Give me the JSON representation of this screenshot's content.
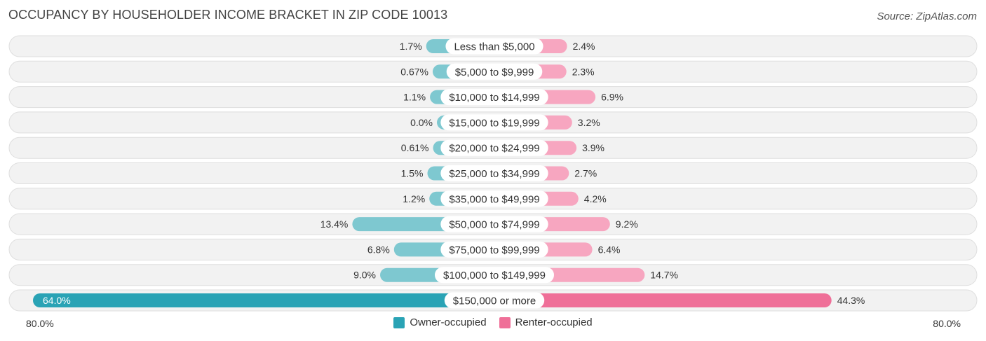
{
  "header": {
    "title": "OCCUPANCY BY HOUSEHOLDER INCOME BRACKET IN ZIP CODE 10013",
    "source": "Source: ZipAtlas.com"
  },
  "chart_data": {
    "type": "bar",
    "orientation": "horizontal-diverging",
    "title": "OCCUPANCY BY HOUSEHOLDER INCOME BRACKET IN ZIP CODE 10013",
    "categories": [
      "Less than $5,000",
      "$5,000 to $9,999",
      "$10,000 to $14,999",
      "$15,000 to $19,999",
      "$20,000 to $24,999",
      "$25,000 to $34,999",
      "$35,000 to $49,999",
      "$50,000 to $74,999",
      "$75,000 to $99,999",
      "$100,000 to $149,999",
      "$150,000 or more"
    ],
    "series": [
      {
        "name": "Owner-occupied",
        "color": "#7ec8d0",
        "highlight_color": "#2aa3b5",
        "values": [
          1.7,
          0.67,
          1.1,
          0.0,
          0.61,
          1.5,
          1.2,
          13.4,
          6.8,
          9.0,
          64.0
        ],
        "labels": [
          "1.7%",
          "0.67%",
          "1.1%",
          "0.0%",
          "0.61%",
          "1.5%",
          "1.2%",
          "13.4%",
          "6.8%",
          "9.0%",
          "64.0%"
        ]
      },
      {
        "name": "Renter-occupied",
        "color": "#f7a6c0",
        "highlight_color": "#ef6f98",
        "values": [
          2.4,
          2.3,
          6.9,
          3.2,
          3.9,
          2.7,
          4.2,
          9.2,
          6.4,
          14.7,
          44.3
        ],
        "labels": [
          "2.4%",
          "2.3%",
          "6.9%",
          "3.2%",
          "3.9%",
          "2.7%",
          "4.2%",
          "9.2%",
          "6.4%",
          "14.7%",
          "44.3%"
        ]
      }
    ],
    "xlim": [
      -80,
      80
    ],
    "axis_labels": {
      "left": "80.0%",
      "right": "80.0%"
    },
    "legend_position": "bottom-center"
  }
}
